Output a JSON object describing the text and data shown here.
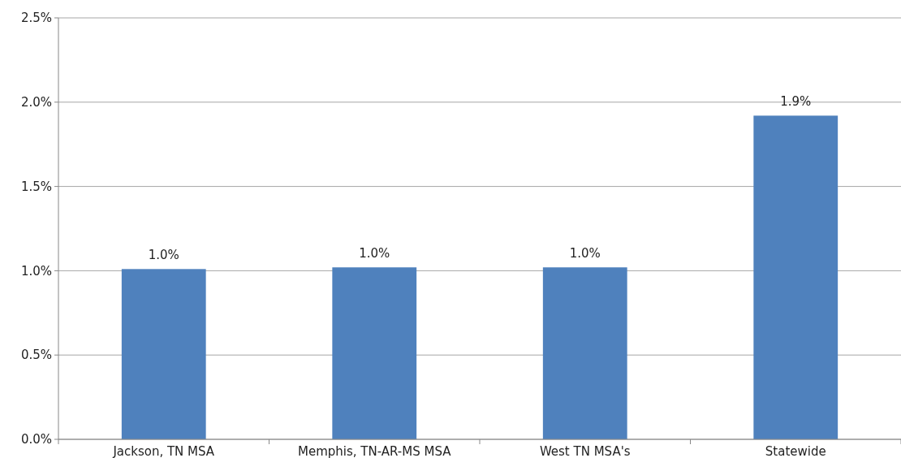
{
  "chart_data": {
    "type": "bar",
    "categories": [
      "Jackson, TN MSA",
      "Memphis, TN-AR-MS MSA",
      "West TN MSA's",
      "Statewide"
    ],
    "values": [
      1.01,
      1.02,
      1.02,
      1.92
    ],
    "value_labels": [
      "1.0%",
      "1.0%",
      "1.0%",
      "1.9%"
    ],
    "color": "#4f81bd",
    "ylim": [
      0,
      2.5
    ],
    "yticks": [
      {
        "value": 0,
        "label": "0.0%"
      },
      {
        "value": 0.5,
        "label": "0.5%"
      },
      {
        "value": 1,
        "label": "1.0%"
      },
      {
        "value": 1.5,
        "label": "1.5%"
      },
      {
        "value": 2,
        "label": "2.0%"
      },
      {
        "value": 2.5,
        "label": "2.5%"
      }
    ],
    "grid": "y"
  }
}
